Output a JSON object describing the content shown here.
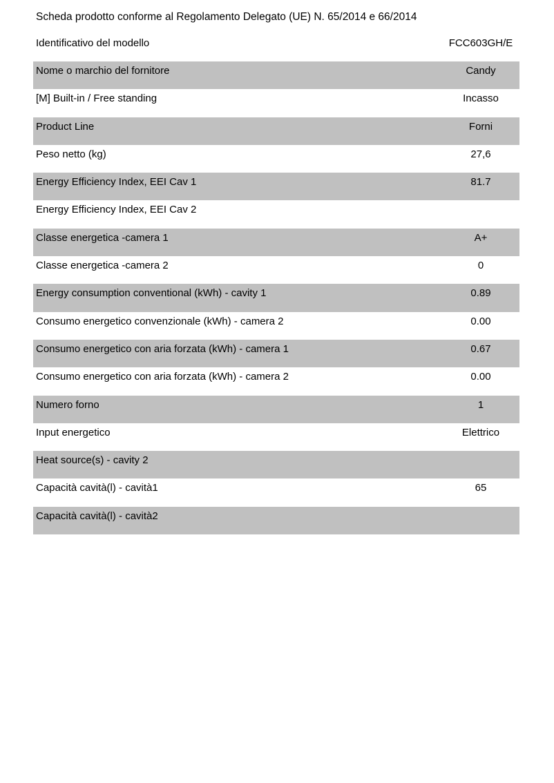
{
  "title": "Scheda prodotto conforme al Regolamento Delegato (UE) N. 65/2014 e 66/2014",
  "model": {
    "label": "Identificativo del modello",
    "value": "FCC603GH/E"
  },
  "colors": {
    "row_shade": "#c0c0c0"
  },
  "rows": [
    {
      "label": "Nome o marchio del fornitore",
      "value": "Candy"
    },
    {
      "label": "[M] Built-in / Free standing",
      "value": "Incasso"
    },
    {
      "label": "Product Line",
      "value": "Forni"
    },
    {
      "label": "Peso netto (kg)",
      "value": "27,6"
    },
    {
      "label": "Energy Efficiency Index, EEI Cav 1",
      "value": "81.7"
    },
    {
      "label": "Energy Efficiency Index, EEI Cav 2",
      "value": ""
    },
    {
      "label": "Classe energetica -camera 1",
      "value": "A+"
    },
    {
      "label": "Classe energetica -camera 2",
      "value": "0"
    },
    {
      "label": "Energy consumption conventional (kWh) - cavity 1",
      "value": "0.89"
    },
    {
      "label": "Consumo energetico convenzionale (kWh) - camera 2",
      "value": "0.00"
    },
    {
      "label": "Consumo energetico con aria forzata (kWh) - camera 1",
      "value": "0.67"
    },
    {
      "label": "Consumo energetico con aria forzata (kWh) - camera 2",
      "value": "0.00"
    },
    {
      "label": "Numero forno",
      "value": "1"
    },
    {
      "label": "Input energetico",
      "value": "Elettrico"
    },
    {
      "label": "Heat source(s) - cavity 2",
      "value": ""
    },
    {
      "label": "Capacità cavità(l) - cavità1",
      "value": "65"
    },
    {
      "label": "Capacità cavità(l) - cavità2",
      "value": ""
    }
  ]
}
